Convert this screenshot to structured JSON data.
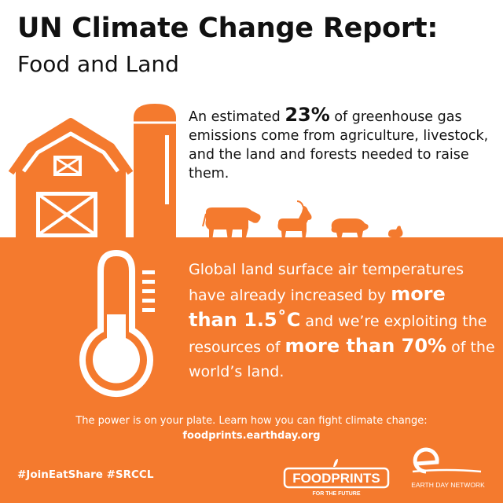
{
  "header": {
    "title": "UN Climate Change Report:",
    "subtitle": "Food and Land"
  },
  "top_fact": {
    "pre": "An estimated ",
    "highlight": "23%",
    "post": " of greenhouse gas emissions come from agriculture, livestock, and the land and forests needed to raise them."
  },
  "temp_fact": {
    "part1": "Global land surface air temperatures have already increased by ",
    "bold1": "more than 1.5˚C",
    "part2": " and we’re exploiting the resources of ",
    "bold2": "more than 70%",
    "part3": " of the world’s land."
  },
  "cta": {
    "line": "The power is on your plate. Learn how you can fight climate change:",
    "url": "foodprints.earthday.org"
  },
  "footer": {
    "hashtags": "#JoinEatShare #SRCCL",
    "foodprints_logo": "FOODPRINTS",
    "foodprints_tagline": "FOR THE FUTURE",
    "earthday_logo": "EARTH DAY NETWORK"
  },
  "colors": {
    "accent": "#f47a2e",
    "text": "#111111",
    "background": "#ffffff"
  },
  "icons": [
    "barn-icon",
    "silo-icon",
    "cow-icon",
    "goat-icon",
    "pig-icon",
    "chicken-icon",
    "thermometer-icon"
  ]
}
